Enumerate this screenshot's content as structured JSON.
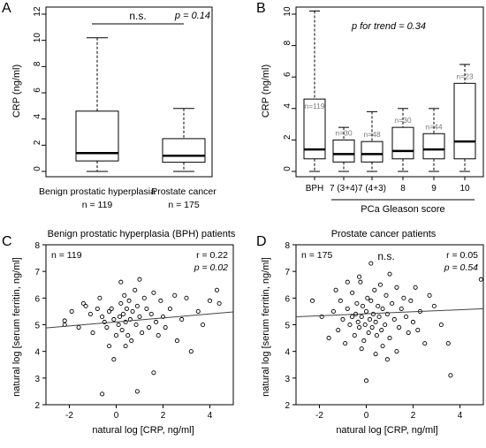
{
  "chart_data": [
    {
      "panel": "A",
      "type": "box",
      "ylabel": "CRP (ng/ml)",
      "ylim": [
        0,
        12
      ],
      "yticks": [
        "0",
        "2",
        "4",
        "6",
        "8",
        "10",
        "12"
      ],
      "annotation_ns": "n.s.",
      "annotation_p": "p = 0.14",
      "categories": [
        "Benign prostatic hyperplasia",
        "Prostate cancer"
      ],
      "n_labels": [
        "n = 119",
        "n = 175"
      ],
      "boxes": [
        {
          "min": 0,
          "q1": 0.8,
          "median": 1.4,
          "q3": 4.6,
          "max": 10.2
        },
        {
          "min": 0,
          "q1": 0.7,
          "median": 1.2,
          "q3": 2.5,
          "max": 4.8
        }
      ]
    },
    {
      "panel": "B",
      "type": "box",
      "ylabel": "CRP (ng/ml)",
      "ylim": [
        0,
        10
      ],
      "yticks": [
        "0",
        "2",
        "4",
        "6",
        "8",
        "10"
      ],
      "annotation_p": "p for trend = 0.34",
      "categories": [
        "BPH",
        "7 (3+4)",
        "7 (4+3)",
        "8",
        "9",
        "10"
      ],
      "n_labels": [
        "n=119",
        "n=30",
        "n=48",
        "n=30",
        "n=44",
        "n=23"
      ],
      "group_label": "PCa Gleason score",
      "boxes": [
        {
          "min": 0,
          "q1": 0.8,
          "median": 1.4,
          "q3": 4.6,
          "max": 10.2
        },
        {
          "min": 0,
          "q1": 0.6,
          "median": 1.1,
          "q3": 2.0,
          "max": 2.8
        },
        {
          "min": 0,
          "q1": 0.6,
          "median": 1.1,
          "q3": 1.9,
          "max": 3.8
        },
        {
          "min": 0,
          "q1": 0.8,
          "median": 1.3,
          "q3": 2.8,
          "max": 4.0
        },
        {
          "min": 0,
          "q1": 0.8,
          "median": 1.4,
          "q3": 2.4,
          "max": 4.0
        },
        {
          "min": 0,
          "q1": 0.8,
          "median": 1.9,
          "q3": 5.6,
          "max": 6.8
        }
      ]
    },
    {
      "panel": "C",
      "type": "scatter",
      "title": "Benign prostatic hyperplasia (BPH) patients",
      "xlabel": "natural log [CRP, ng/ml]",
      "ylabel": "natural log [serum ferritin, ng/ml]",
      "xlim": [
        -3,
        5
      ],
      "ylim": [
        2,
        8
      ],
      "xticks": [
        -2,
        0,
        2,
        4
      ],
      "yticks": [
        2,
        3,
        4,
        5,
        6,
        7,
        8
      ],
      "n_label": "n = 119",
      "r_label": "r = 0.22",
      "p_label": "p = 0.02",
      "regression": {
        "x0": -3,
        "y0": 4.88,
        "x1": 5,
        "y1": 5.48
      },
      "points": [
        [
          -2.2,
          5.0
        ],
        [
          -2.2,
          5.15
        ],
        [
          -1.9,
          5.5
        ],
        [
          -1.6,
          4.9
        ],
        [
          -1.4,
          5.8
        ],
        [
          -1.3,
          5.7
        ],
        [
          -1.1,
          5.4
        ],
        [
          -1.0,
          4.7
        ],
        [
          -0.8,
          5.6
        ],
        [
          -0.7,
          6.0
        ],
        [
          -0.6,
          5.3
        ],
        [
          -0.5,
          5.1
        ],
        [
          -0.4,
          4.9
        ],
        [
          -0.3,
          5.5
        ],
        [
          -0.2,
          5.6
        ],
        [
          -0.1,
          5.2
        ],
        [
          0.0,
          4.6
        ],
        [
          0.1,
          5.0
        ],
        [
          0.15,
          5.3
        ],
        [
          0.2,
          5.8
        ],
        [
          0.25,
          4.8
        ],
        [
          0.3,
          5.4
        ],
        [
          0.35,
          6.1
        ],
        [
          0.4,
          5.1
        ],
        [
          0.45,
          5.6
        ],
        [
          0.5,
          4.6
        ],
        [
          0.55,
          5.9
        ],
        [
          0.6,
          5.2
        ],
        [
          0.65,
          4.4
        ],
        [
          0.7,
          5.5
        ],
        [
          0.8,
          6.3
        ],
        [
          0.85,
          5.0
        ],
        [
          0.9,
          5.7
        ],
        [
          1.0,
          5.3
        ],
        [
          1.1,
          4.7
        ],
        [
          1.2,
          6.0
        ],
        [
          1.3,
          5.6
        ],
        [
          1.4,
          4.9
        ],
        [
          1.5,
          5.4
        ],
        [
          1.6,
          6.2
        ],
        [
          1.7,
          5.1
        ],
        [
          1.8,
          4.6
        ],
        [
          1.9,
          5.9
        ],
        [
          2.0,
          5.3
        ],
        [
          2.1,
          4.9
        ],
        [
          2.3,
          5.6
        ],
        [
          2.5,
          6.1
        ],
        [
          2.6,
          4.4
        ],
        [
          2.8,
          5.2
        ],
        [
          3.0,
          6.0
        ],
        [
          3.2,
          4.0
        ],
        [
          3.5,
          5.5
        ],
        [
          3.7,
          5.0
        ],
        [
          4.0,
          5.9
        ],
        [
          4.3,
          6.3
        ],
        [
          4.4,
          5.8
        ],
        [
          -0.1,
          3.7
        ],
        [
          0.4,
          4.2
        ],
        [
          1.6,
          3.2
        ],
        [
          -0.6,
          2.4
        ],
        [
          0.9,
          2.5
        ],
        [
          -0.3,
          4.2
        ],
        [
          0.2,
          6.6
        ],
        [
          1.0,
          6.7
        ]
      ]
    },
    {
      "panel": "D",
      "type": "scatter",
      "title": "Prostate cancer patients",
      "xlabel": "natural log [CRP, ng/ml]",
      "ylabel": "natural log [serum ferritin, ng/ml]",
      "xlim": [
        -3,
        5
      ],
      "ylim": [
        2,
        8
      ],
      "xticks": [
        -2,
        0,
        2,
        4
      ],
      "yticks": [
        2,
        3,
        4,
        5,
        6,
        7,
        8
      ],
      "n_label": "n = 175",
      "ns_label": "n.s.",
      "r_label": "r = 0.05",
      "p_label": "p = 0.54",
      "regression": {
        "x0": -3,
        "y0": 5.3,
        "x1": 5,
        "y1": 5.6
      },
      "points": [
        [
          -2.3,
          5.9
        ],
        [
          -1.9,
          5.3
        ],
        [
          -1.6,
          4.5
        ],
        [
          -1.4,
          5.5
        ],
        [
          -1.2,
          4.8
        ],
        [
          -1.1,
          5.9
        ],
        [
          -1.0,
          5.2
        ],
        [
          -0.9,
          4.3
        ],
        [
          -0.8,
          5.6
        ],
        [
          -0.7,
          5.0
        ],
        [
          -0.6,
          6.2
        ],
        [
          -0.5,
          4.6
        ],
        [
          -0.45,
          5.4
        ],
        [
          -0.4,
          5.8
        ],
        [
          -0.35,
          5.1
        ],
        [
          -0.3,
          4.9
        ],
        [
          -0.25,
          6.6
        ],
        [
          -0.2,
          5.3
        ],
        [
          -0.15,
          5.7
        ],
        [
          -0.1,
          4.4
        ],
        [
          -0.05,
          5.0
        ],
        [
          0.0,
          5.5
        ],
        [
          0.05,
          6.0
        ],
        [
          0.1,
          4.7
        ],
        [
          0.15,
          5.2
        ],
        [
          0.2,
          5.9
        ],
        [
          0.25,
          4.9
        ],
        [
          0.3,
          5.4
        ],
        [
          0.35,
          6.3
        ],
        [
          0.4,
          5.1
        ],
        [
          0.45,
          4.6
        ],
        [
          0.5,
          5.7
        ],
        [
          0.55,
          5.3
        ],
        [
          0.6,
          6.5
        ],
        [
          0.65,
          4.8
        ],
        [
          0.7,
          5.6
        ],
        [
          0.8,
          5.0
        ],
        [
          0.85,
          6.1
        ],
        [
          0.9,
          5.4
        ],
        [
          1.0,
          4.5
        ],
        [
          1.1,
          5.8
        ],
        [
          1.2,
          5.2
        ],
        [
          1.3,
          6.4
        ],
        [
          1.4,
          4.9
        ],
        [
          1.5,
          5.6
        ],
        [
          1.6,
          6.0
        ],
        [
          1.7,
          5.3
        ],
        [
          1.8,
          4.7
        ],
        [
          1.9,
          5.9
        ],
        [
          2.0,
          5.1
        ],
        [
          2.1,
          6.4
        ],
        [
          2.3,
          5.5
        ],
        [
          2.5,
          4.3
        ],
        [
          2.7,
          6.1
        ],
        [
          2.9,
          5.7
        ],
        [
          3.2,
          5.0
        ],
        [
          3.5,
          4.3
        ],
        [
          3.6,
          3.1
        ],
        [
          4.9,
          6.7
        ],
        [
          0.0,
          2.9
        ],
        [
          -0.3,
          6.8
        ],
        [
          0.2,
          7.3
        ],
        [
          1.0,
          6.9
        ],
        [
          0.4,
          3.9
        ],
        [
          -0.6,
          5.3
        ],
        [
          -0.2,
          4.1
        ],
        [
          0.7,
          4.2
        ],
        [
          1.3,
          4.0
        ],
        [
          2.2,
          4.8
        ],
        [
          -1.3,
          6.3
        ],
        [
          0.9,
          3.7
        ],
        [
          -0.8,
          6.6
        ]
      ]
    }
  ]
}
